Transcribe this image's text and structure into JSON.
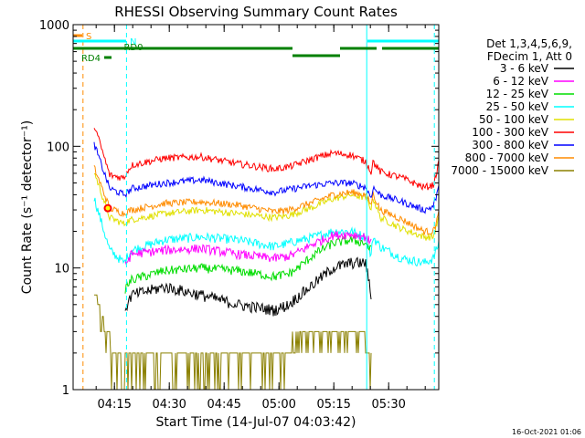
{
  "chart_data": {
    "type": "line",
    "title": "RHESSI Observing Summary Count Rates",
    "xlabel": "Start Time (14-Jul-07 04:03:42)",
    "ylabel": "Count Rate (s⁻¹ detector⁻¹)",
    "yscale": "log",
    "ylim": [
      1,
      1000
    ],
    "xlim_minutes": [
      0,
      100
    ],
    "grid": false,
    "x_ticks": [
      {
        "label": "04:15",
        "minute": 11.3
      },
      {
        "label": "04:30",
        "minute": 26.3
      },
      {
        "label": "04:45",
        "minute": 41.3
      },
      {
        "label": "05:00",
        "minute": 56.3
      },
      {
        "label": "05:15",
        "minute": 71.3
      },
      {
        "label": "05:30",
        "minute": 86.3
      }
    ],
    "y_ticks": [
      1,
      10,
      100,
      1000
    ],
    "legend_header": [
      "Det 1,3,4,5,6,9,",
      "FDecim 1, Att 0"
    ],
    "legend_position": "right",
    "x_knots": [
      0,
      4.5,
      5.5,
      10,
      14,
      14.5,
      16,
      25,
      35,
      45,
      55,
      59,
      60.5,
      66,
      71,
      76,
      80,
      81.5,
      82,
      84,
      90,
      96,
      98.5,
      100
    ],
    "series": [
      {
        "name": "3 - 6 keV",
        "color": "#000000",
        "noise": 0.05,
        "values": [
          null,
          null,
          null,
          null,
          4.8,
          4.8,
          6,
          7,
          6,
          5,
          4.5,
          5,
          5.5,
          7.5,
          10,
          11,
          11,
          6,
          null,
          null,
          null,
          null,
          null,
          null
        ]
      },
      {
        "name": "6 - 12 keV",
        "color": "#ff00ff",
        "noise": 0.04,
        "values": [
          null,
          null,
          null,
          null,
          11,
          11,
          13,
          14,
          14.5,
          13,
          12,
          12.5,
          13,
          16,
          18.5,
          19,
          18,
          16,
          null,
          null,
          null,
          null,
          null,
          null
        ]
      },
      {
        "name": "12 - 25 keV",
        "color": "#00dd00",
        "noise": 0.04,
        "values": [
          null,
          null,
          null,
          null,
          6.5,
          7,
          8,
          9.5,
          10,
          9.5,
          8.5,
          9,
          9.5,
          13,
          16,
          17,
          16,
          14,
          null,
          null,
          null,
          null,
          null,
          null
        ]
      },
      {
        "name": "25 - 50 keV",
        "color": "#00ffff",
        "noise": 0.04,
        "values": [
          null,
          null,
          40,
          14,
          11,
          12,
          14,
          17,
          18,
          17,
          15,
          16,
          16.5,
          18,
          20,
          20,
          18,
          12.5,
          18,
          15,
          12,
          11,
          12,
          16
        ]
      },
      {
        "name": "50 - 100 keV",
        "color": "#e0e000",
        "noise": 0.03,
        "values": [
          null,
          null,
          65,
          26,
          23,
          24,
          25,
          28,
          30,
          28,
          26,
          27,
          28,
          32,
          37,
          40,
          38,
          31,
          38,
          26,
          21,
          18,
          18,
          26
        ]
      },
      {
        "name": "100 - 300 keV",
        "color": "#ff0000",
        "noise": 0.03,
        "values": [
          null,
          null,
          160,
          58,
          55,
          60,
          70,
          80,
          82,
          72,
          65,
          68,
          70,
          80,
          88,
          85,
          75,
          62,
          75,
          62,
          55,
          46,
          48,
          72
        ]
      },
      {
        "name": "300 - 800 keV",
        "color": "#0000ff",
        "noise": 0.03,
        "values": [
          null,
          null,
          110,
          45,
          40,
          41,
          45,
          50,
          53,
          47,
          42,
          44,
          45,
          48,
          50,
          50,
          46,
          38,
          46,
          40,
          35,
          30,
          32,
          45
        ]
      },
      {
        "name": "800 - 7000 keV",
        "color": "#ff8c00",
        "noise": 0.03,
        "values": [
          null,
          null,
          70,
          31,
          28,
          29,
          30,
          34,
          35,
          33,
          29,
          30,
          31,
          35,
          40,
          42,
          40,
          33,
          41,
          30,
          25,
          20,
          20,
          28
        ]
      },
      {
        "name": "7000 - 15000 keV",
        "color": "#8b8000",
        "noise": 0.0,
        "values": [
          null,
          null,
          7,
          2.5,
          2.0,
          2.0,
          1.8,
          1.9,
          1.8,
          1.6,
          1.5,
          2.0,
          3.0,
          3.0,
          3.0,
          2.9,
          2.5,
          2.0,
          null,
          null,
          null,
          null,
          null,
          null
        ]
      }
    ],
    "state_bars": [
      {
        "label": "S",
        "color": "#ff8c00",
        "x_start": 0,
        "x_end": 2.5,
        "level_frac": 0.97,
        "label_side": "right"
      },
      {
        "label": "N",
        "color": "#00ffff",
        "x_start": 0,
        "x_end": 14.5,
        "level_frac": 0.955,
        "label_side": "right"
      },
      {
        "label": "",
        "color": "#00ffff",
        "x_start": 80.5,
        "x_end": 100,
        "level_frac": 0.955,
        "label_side": "none"
      },
      {
        "label": "RD0",
        "color": "#008000",
        "x_start": 0,
        "x_end": 60,
        "level_frac": 0.935,
        "label_side": "under"
      },
      {
        "label": "",
        "color": "#008000",
        "x_start": 60,
        "x_end": 73,
        "level_frac": 0.915,
        "label_side": "none"
      },
      {
        "label": "",
        "color": "#008000",
        "x_start": 73,
        "x_end": 83,
        "level_frac": 0.935,
        "label_side": "none"
      },
      {
        "label": "",
        "color": "#008000",
        "x_start": 84.5,
        "x_end": 100,
        "level_frac": 0.935,
        "label_side": "none"
      },
      {
        "label": "RD4",
        "color": "#008000",
        "x_start": 8.5,
        "x_end": 10.5,
        "level_frac": 0.91,
        "label_side": "left"
      }
    ],
    "vertical_markers": [
      {
        "x": 2.7,
        "color": "#ff8c00",
        "style": "dashed"
      },
      {
        "x": 14.6,
        "color": "#00ffff",
        "style": "dashed"
      },
      {
        "x": 80.3,
        "color": "#00ffff",
        "style": "solid"
      },
      {
        "x": 98.8,
        "color": "#00ffff",
        "style": "dashed"
      }
    ],
    "flag_marker": {
      "x": 9.5,
      "y": 31,
      "color": "#ff0000"
    },
    "timestamp": "16-Oct-2021 01:06"
  }
}
